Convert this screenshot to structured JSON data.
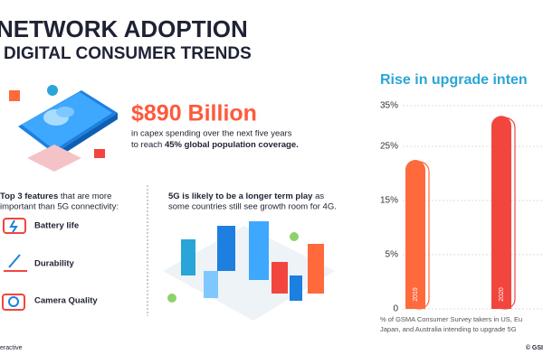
{
  "header": {
    "title": "NETWORK ADOPTION",
    "subtitle": "DIGITAL CONSUMER TRENDS"
  },
  "capex": {
    "amount": "$890 Billion",
    "line1": "in capex spending over the next five years",
    "line2_prefix": "to reach ",
    "line2_bold": "45% global population coverage."
  },
  "features": {
    "intro_bold": "Top 3 features",
    "intro_rest": " that are more",
    "intro_line2": "important than 5G connectivity:",
    "items": [
      "Battery life",
      "Durability",
      "Camera Quality"
    ]
  },
  "longterm": {
    "bold": "5G is likely to be a longer term play",
    "rest": " as",
    "line2": "some countries still see growth room for 4G."
  },
  "chart_data": {
    "type": "bar",
    "title": "Rise in upgrade inten",
    "categories": [
      "2019",
      "2020"
    ],
    "values": [
      22.5,
      32.5
    ],
    "colors": [
      "#ff6a3d",
      "#f2453d"
    ],
    "ylim": [
      0,
      35
    ],
    "yticks": [
      0,
      {
        "value": 5,
        "label": "5%"
      },
      {
        "value": 15,
        "label": "15%"
      },
      {
        "value": 25,
        "label": "25%"
      },
      {
        "value": 35,
        "label": "35%"
      }
    ],
    "grid": true,
    "caption": [
      "% of GSMA Consumer Survey takers in US, Eu",
      "Japan, and Australia intending to upgrade 5G"
    ]
  },
  "footer": {
    "left": "eractive",
    "right": "© GSI"
  }
}
